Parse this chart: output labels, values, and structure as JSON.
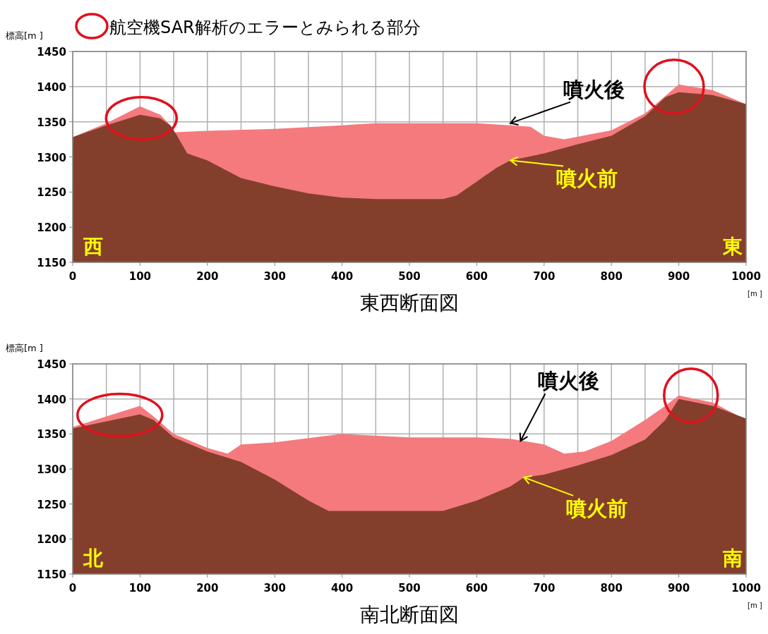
{
  "chart_data": [
    {
      "type": "area",
      "xlabel": "東西断面図",
      "ylabel": "標高[m ]",
      "xlim": [
        0,
        1000
      ],
      "ylim": [
        1150,
        1450
      ],
      "xticks": [
        0,
        100,
        200,
        300,
        400,
        500,
        600,
        700,
        800,
        900,
        1000
      ],
      "yticks": [
        1150,
        1200,
        1250,
        1300,
        1350,
        1400,
        1450
      ],
      "grid": true,
      "series": [
        {
          "type": "area",
          "color": "#f47a7e",
          "x": [
            0,
            50,
            100,
            130,
            145,
            150,
            200,
            300,
            400,
            450,
            500,
            600,
            650,
            680,
            700,
            730,
            800,
            850,
            900,
            950,
            1000
          ],
          "values": [
            1328,
            1348,
            1372,
            1360,
            1345,
            1335,
            1337,
            1340,
            1345,
            1348,
            1348,
            1348,
            1345,
            1343,
            1330,
            1325,
            1338,
            1362,
            1403,
            1395,
            1375
          ]
        },
        {
          "type": "area",
          "color": "#843f2c",
          "x": [
            0,
            50,
            100,
            130,
            145,
            155,
            170,
            200,
            250,
            300,
            350,
            400,
            450,
            500,
            550,
            570,
            600,
            630,
            650,
            700,
            750,
            800,
            850,
            880,
            900,
            950,
            1000
          ],
          "values": [
            1328,
            1345,
            1360,
            1355,
            1345,
            1330,
            1305,
            1295,
            1270,
            1258,
            1248,
            1242,
            1240,
            1240,
            1240,
            1245,
            1265,
            1285,
            1295,
            1305,
            1318,
            1330,
            1358,
            1385,
            1392,
            1388,
            1375
          ]
        }
      ],
      "annotations": [
        {
          "text": "噴火後",
          "x": 650,
          "y": 1348
        },
        {
          "text": "噴火前",
          "x": 650,
          "y": 1295
        },
        "西",
        "東",
        "[m ]",
        "航空機SAR解析のエラーとみられる部分"
      ]
    },
    {
      "type": "area",
      "xlabel": "南北断面図",
      "ylabel": "標高[m ]",
      "xlim": [
        0,
        1000
      ],
      "ylim": [
        1150,
        1450
      ],
      "xticks": [
        0,
        100,
        200,
        300,
        400,
        500,
        600,
        700,
        800,
        900,
        1000
      ],
      "yticks": [
        1150,
        1200,
        1250,
        1300,
        1350,
        1400,
        1450
      ],
      "grid": true,
      "series": [
        {
          "type": "area",
          "color": "#f47a7e",
          "x": [
            0,
            50,
            100,
            120,
            150,
            200,
            230,
            250,
            300,
            400,
            500,
            600,
            650,
            700,
            730,
            760,
            800,
            850,
            880,
            900,
            950,
            1000
          ],
          "values": [
            1360,
            1375,
            1390,
            1375,
            1350,
            1330,
            1322,
            1335,
            1338,
            1350,
            1345,
            1345,
            1343,
            1335,
            1322,
            1325,
            1340,
            1370,
            1390,
            1405,
            1395,
            1370
          ]
        },
        {
          "type": "area",
          "color": "#843f2c",
          "x": [
            0,
            50,
            100,
            120,
            150,
            200,
            250,
            300,
            350,
            380,
            450,
            500,
            550,
            600,
            650,
            670,
            700,
            750,
            800,
            850,
            880,
            900,
            950,
            1000
          ],
          "values": [
            1358,
            1368,
            1378,
            1370,
            1345,
            1325,
            1310,
            1285,
            1255,
            1240,
            1240,
            1240,
            1240,
            1255,
            1275,
            1288,
            1292,
            1305,
            1320,
            1342,
            1370,
            1400,
            1390,
            1372
          ]
        }
      ],
      "annotations": [
        {
          "text": "噴火後",
          "x": 665,
          "y": 1340
        },
        {
          "text": "噴火前",
          "x": 670,
          "y": 1288
        },
        "北",
        "南",
        "[m ]"
      ]
    }
  ]
}
